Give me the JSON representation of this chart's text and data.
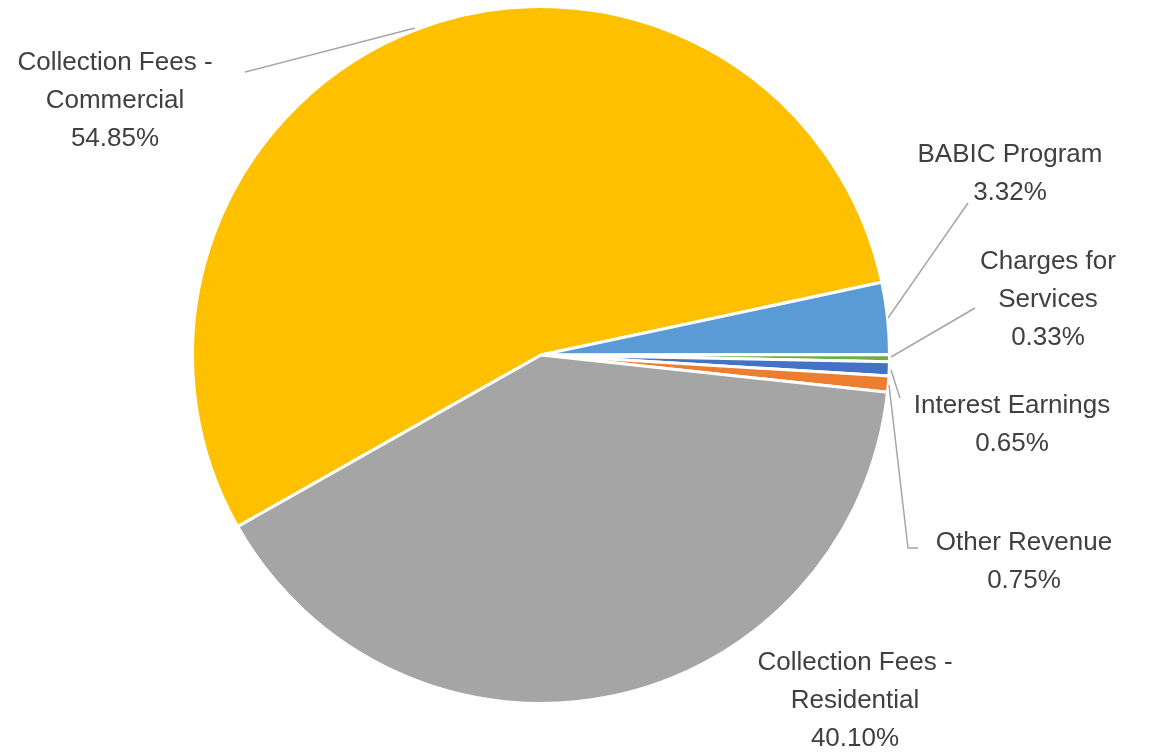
{
  "chart_data": {
    "type": "pie",
    "categories": [
      "Collection Fees - Commercial",
      "BABIC Program",
      "Charges for Services",
      "Interest Earnings",
      "Other Revenue",
      "Collection Fees - Residential"
    ],
    "values": [
      54.85,
      3.32,
      0.33,
      0.65,
      0.75,
      40.1
    ],
    "value_labels": [
      "54.85%",
      "3.32%",
      "0.33%",
      "0.65%",
      "0.75%",
      "40.10%"
    ],
    "colors": [
      "#ffc000",
      "#5b9bd5",
      "#70ad47",
      "#4472c4",
      "#ed7d31",
      "#a5a5a5"
    ],
    "legend": false
  }
}
